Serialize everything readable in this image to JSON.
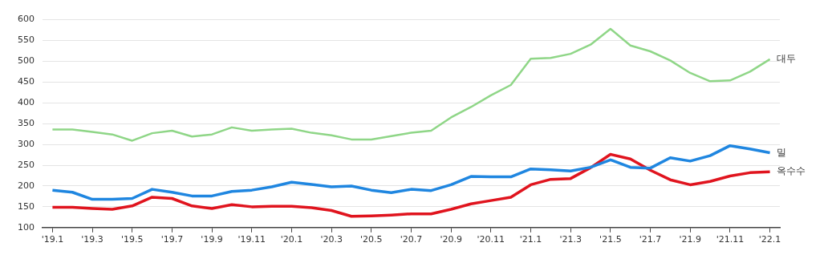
{
  "chart_data": {
    "type": "line",
    "categories": [
      "'19.1",
      null,
      "'19.3",
      null,
      "'19.5",
      null,
      "'19.7",
      null,
      "'19.9",
      null,
      "'19.11",
      null,
      "'20.1",
      null,
      "'20.3",
      null,
      "'20.5",
      null,
      "'20.7",
      null,
      "'20.9",
      null,
      "'20.11",
      null,
      "'21.1",
      null,
      "'21.3",
      null,
      "'21.5",
      null,
      "'21.7",
      null,
      "'21.9",
      null,
      "'21.11",
      null,
      "'22.1"
    ],
    "series": [
      {
        "name": "대두",
        "color": "#8fd687",
        "values": [
          336,
          336,
          330,
          324,
          309,
          327,
          333,
          319,
          324,
          341,
          333,
          336,
          338,
          328,
          322,
          312,
          312,
          320,
          328,
          333,
          365,
          390,
          418,
          443,
          506,
          508,
          518,
          540,
          578,
          538,
          524,
          502,
          472,
          452,
          454,
          475,
          505
        ]
      },
      {
        "name": "밀",
        "color": "#1f86e0",
        "values": [
          190,
          185,
          168,
          168,
          170,
          192,
          185,
          176,
          176,
          187,
          190,
          198,
          209,
          204,
          198,
          200,
          190,
          184,
          192,
          189,
          203,
          223,
          222,
          222,
          241,
          239,
          236,
          245,
          263,
          245,
          243,
          268,
          260,
          273,
          297,
          289,
          280
        ]
      },
      {
        "name": "옥수수",
        "color": "#e0141e",
        "values": [
          149,
          149,
          146,
          144,
          152,
          173,
          170,
          152,
          146,
          155,
          150,
          151,
          151,
          148,
          141,
          127,
          128,
          130,
          133,
          133,
          144,
          157,
          165,
          173,
          203,
          216,
          218,
          244,
          276,
          265,
          238,
          215,
          203,
          211,
          224,
          232,
          234
        ]
      }
    ],
    "ylim": [
      100,
      600
    ],
    "yticks": [
      100,
      150,
      200,
      250,
      300,
      350,
      400,
      450,
      500,
      550,
      600
    ],
    "grid": "y",
    "legend": false,
    "marker": "none",
    "line_style": "solid"
  }
}
